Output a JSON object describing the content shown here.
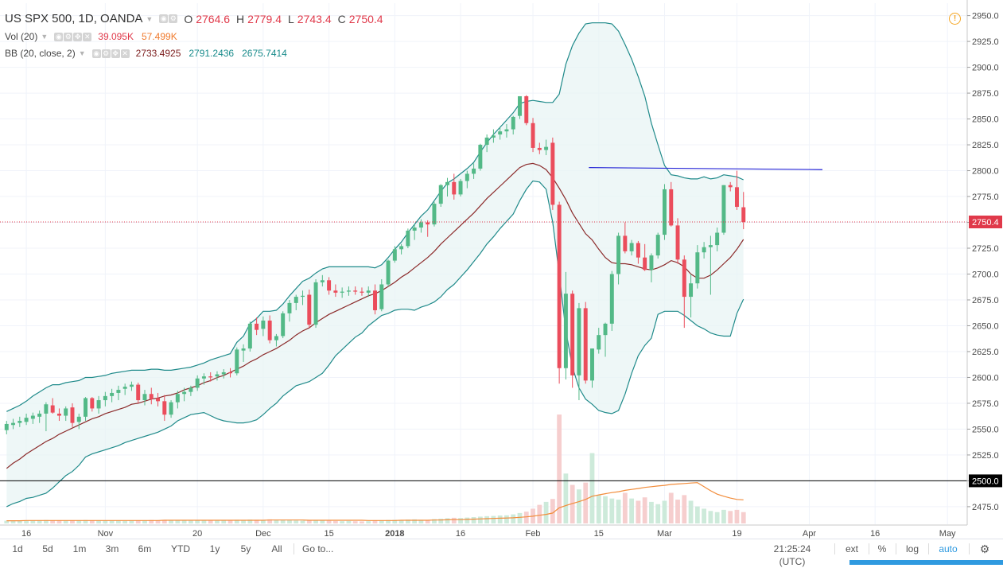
{
  "legend": {
    "symbol": "US SPX 500, 1D, OANDA",
    "o_label": "O",
    "o_value": "2764.6",
    "h_label": "H",
    "h_value": "2779.4",
    "l_label": "L",
    "l_value": "2743.4",
    "c_label": "C",
    "c_value": "2750.4",
    "vol_label": "Vol (20)",
    "vol_value1": "39.095K",
    "vol_value2": "57.499K",
    "bb_label": "BB (20, close, 2)",
    "bb_basis": "2733.4925",
    "bb_upper": "2791.2436",
    "bb_lower": "2675.7414"
  },
  "colors": {
    "up": "#53b987",
    "down": "#eb4d5c",
    "bb_upper_lower": "#1f8a8a",
    "bb_basis": "#8b2a2a",
    "bb_fill": "#e8f4f4",
    "vol_ma": "#f28c3a",
    "trendline": "#2424d6",
    "price_line": "#e0394a"
  },
  "chart_data": {
    "type": "candlestick",
    "y_axis": {
      "ticks": [
        "2950.0",
        "2925.0",
        "2900.0",
        "2875.0",
        "2850.0",
        "2825.0",
        "2800.0",
        "2775.0",
        "2750.0",
        "2725.0",
        "2700.0",
        "2675.0",
        "2650.0",
        "2625.0",
        "2600.0",
        "2575.0",
        "2550.0",
        "2525.0",
        "2500.0",
        "2475.0"
      ],
      "ylim": [
        2458,
        2962
      ]
    },
    "x_axis": {
      "ticks": [
        {
          "label": "16",
          "x": 3
        },
        {
          "label": "Nov",
          "x": 15
        },
        {
          "label": "20",
          "x": 29
        },
        {
          "label": "Dec",
          "x": 39
        },
        {
          "label": "15",
          "x": 49
        },
        {
          "label": "2018",
          "x": 59
        },
        {
          "label": "16",
          "x": 69
        },
        {
          "label": "Feb",
          "x": 80
        },
        {
          "label": "15",
          "x": 90
        },
        {
          "label": "Mar",
          "x": 100
        },
        {
          "label": "19",
          "x": 111
        },
        {
          "label": "Apr",
          "x": 122
        },
        {
          "label": "16",
          "x": 132
        },
        {
          "label": "May",
          "x": 143
        }
      ],
      "xlim": [
        -1,
        146
      ]
    },
    "current_price_label": "2750.4",
    "level_label": "2500.0",
    "horizontal_level": 2500,
    "trendline": {
      "x1": 88.5,
      "y1": 2803,
      "x2": 124,
      "y2": 2801
    },
    "volume_scale_max": 57.5,
    "candles": [
      [
        2549,
        2558,
        2545,
        2555
      ],
      [
        2554,
        2560,
        2550,
        2556
      ],
      [
        2556,
        2562,
        2552,
        2558
      ],
      [
        2557,
        2565,
        2554,
        2561
      ],
      [
        2560,
        2566,
        2555,
        2563
      ],
      [
        2562,
        2568,
        2556,
        2565
      ],
      [
        2565,
        2576,
        2548,
        2574
      ],
      [
        2573,
        2580,
        2565,
        2566
      ],
      [
        2565,
        2570,
        2558,
        2563
      ],
      [
        2563,
        2572,
        2558,
        2570
      ],
      [
        2571,
        2575,
        2552,
        2556
      ],
      [
        2557,
        2565,
        2550,
        2562
      ],
      [
        2562,
        2581,
        2558,
        2580
      ],
      [
        2580,
        2581,
        2567,
        2570
      ],
      [
        2570,
        2582,
        2565,
        2578
      ],
      [
        2578,
        2586,
        2572,
        2582
      ],
      [
        2582,
        2589,
        2576,
        2585
      ],
      [
        2585,
        2592,
        2578,
        2588
      ],
      [
        2589,
        2594,
        2583,
        2591
      ],
      [
        2591,
        2596,
        2587,
        2593
      ],
      [
        2593,
        2595,
        2575,
        2578
      ],
      [
        2578,
        2588,
        2573,
        2584
      ],
      [
        2584,
        2590,
        2574,
        2579
      ],
      [
        2580,
        2585,
        2572,
        2577
      ],
      [
        2577,
        2583,
        2558,
        2564
      ],
      [
        2564,
        2578,
        2561,
        2576
      ],
      [
        2576,
        2587,
        2570,
        2584
      ],
      [
        2584,
        2590,
        2577,
        2586
      ],
      [
        2586,
        2592,
        2582,
        2590
      ],
      [
        2590,
        2602,
        2587,
        2599
      ],
      [
        2599,
        2604,
        2593,
        2601
      ],
      [
        2601,
        2605,
        2596,
        2600
      ],
      [
        2601,
        2606,
        2597,
        2603
      ],
      [
        2603,
        2608,
        2599,
        2605
      ],
      [
        2605,
        2609,
        2600,
        2604
      ],
      [
        2604,
        2629,
        2602,
        2627
      ],
      [
        2626,
        2632,
        2615,
        2628
      ],
      [
        2628,
        2654,
        2625,
        2652
      ],
      [
        2652,
        2658,
        2641,
        2646
      ],
      [
        2647,
        2659,
        2640,
        2655
      ],
      [
        2655,
        2660,
        2633,
        2636
      ],
      [
        2636,
        2642,
        2630,
        2640
      ],
      [
        2640,
        2664,
        2638,
        2662
      ],
      [
        2662,
        2675,
        2654,
        2672
      ],
      [
        2672,
        2680,
        2665,
        2678
      ],
      [
        2678,
        2684,
        2670,
        2679
      ],
      [
        2680,
        2685,
        2648,
        2651
      ],
      [
        2651,
        2695,
        2648,
        2692
      ],
      [
        2692,
        2699,
        2688,
        2694
      ],
      [
        2694,
        2697,
        2680,
        2684
      ],
      [
        2684,
        2690,
        2678,
        2682
      ],
      [
        2682,
        2687,
        2677,
        2683
      ],
      [
        2683,
        2688,
        2679,
        2684
      ],
      [
        2684,
        2688,
        2680,
        2683
      ],
      [
        2683,
        2687,
        2679,
        2682
      ],
      [
        2682,
        2688,
        2678,
        2684
      ],
      [
        2684,
        2690,
        2661,
        2665
      ],
      [
        2666,
        2695,
        2664,
        2690
      ],
      [
        2690,
        2714,
        2688,
        2713
      ],
      [
        2713,
        2727,
        2711,
        2724
      ],
      [
        2724,
        2729,
        2719,
        2727
      ],
      [
        2727,
        2744,
        2725,
        2742
      ],
      [
        2742,
        2748,
        2733,
        2745
      ],
      [
        2745,
        2753,
        2740,
        2750
      ],
      [
        2750,
        2752,
        2736,
        2748
      ],
      [
        2748,
        2770,
        2746,
        2768
      ],
      [
        2768,
        2787,
        2765,
        2786
      ],
      [
        2786,
        2793,
        2775,
        2789
      ],
      [
        2789,
        2797,
        2772,
        2777
      ],
      [
        2777,
        2792,
        2775,
        2790
      ],
      [
        2790,
        2800,
        2783,
        2797
      ],
      [
        2797,
        2807,
        2792,
        2802
      ],
      [
        2802,
        2826,
        2800,
        2825
      ],
      [
        2825,
        2835,
        2818,
        2832
      ],
      [
        2832,
        2840,
        2827,
        2834
      ],
      [
        2835,
        2842,
        2830,
        2838
      ],
      [
        2838,
        2845,
        2832,
        2840
      ],
      [
        2840,
        2853,
        2835,
        2852
      ],
      [
        2853,
        2872,
        2850,
        2872
      ],
      [
        2872,
        2873,
        2844,
        2846
      ],
      [
        2846,
        2851,
        2818,
        2822
      ],
      [
        2822,
        2827,
        2816,
        2820
      ],
      [
        2820,
        2830,
        2815,
        2823
      ],
      [
        2827,
        2832,
        2762,
        2767
      ],
      [
        2767,
        2770,
        2594,
        2609
      ],
      [
        2609,
        2702,
        2598,
        2681
      ],
      [
        2681,
        2684,
        2590,
        2602
      ],
      [
        2602,
        2672,
        2578,
        2667
      ],
      [
        2667,
        2673,
        2594,
        2597
      ],
      [
        2597,
        2628,
        2590,
        2628
      ],
      [
        2627,
        2648,
        2623,
        2641
      ],
      [
        2641,
        2653,
        2620,
        2652
      ],
      [
        2652,
        2703,
        2645,
        2700
      ],
      [
        2700,
        2740,
        2690,
        2737
      ],
      [
        2737,
        2750,
        2720,
        2722
      ],
      [
        2722,
        2733,
        2718,
        2730
      ],
      [
        2730,
        2732,
        2710,
        2716
      ],
      [
        2716,
        2729,
        2703,
        2704
      ],
      [
        2704,
        2720,
        2692,
        2718
      ],
      [
        2718,
        2740,
        2715,
        2738
      ],
      [
        2738,
        2787,
        2733,
        2782
      ],
      [
        2782,
        2789,
        2746,
        2747
      ],
      [
        2747,
        2754,
        2710,
        2714
      ],
      [
        2714,
        2718,
        2648,
        2678
      ],
      [
        2678,
        2700,
        2658,
        2691
      ],
      [
        2691,
        2728,
        2686,
        2721
      ],
      [
        2721,
        2731,
        2715,
        2726
      ],
      [
        2726,
        2737,
        2680,
        2728
      ],
      [
        2728,
        2745,
        2722,
        2740
      ],
      [
        2740,
        2786,
        2738,
        2786
      ],
      [
        2786,
        2789,
        2780,
        2784
      ],
      [
        2784,
        2800,
        2762,
        2765
      ],
      [
        2764.6,
        2779.4,
        2743.4,
        2750.4
      ]
    ],
    "volumes": [
      1.2,
      1.3,
      1.4,
      1.2,
      1.3,
      1.2,
      1.5,
      1.4,
      1.3,
      1.2,
      1.4,
      1.3,
      1.5,
      1.4,
      1.3,
      1.2,
      1.3,
      1.2,
      1.1,
      1.2,
      1.4,
      1.3,
      1.5,
      1.4,
      1.6,
      1.5,
      1.4,
      1.3,
      1.2,
      1.5,
      1.4,
      1.3,
      1.2,
      1.3,
      1.4,
      1.6,
      1.5,
      1.7,
      1.6,
      1.5,
      1.8,
      1.6,
      1.5,
      1.4,
      1.3,
      1.2,
      1.4,
      1.5,
      1.3,
      1.2,
      1.1,
      1.0,
      1.1,
      1.0,
      0.9,
      1.0,
      1.3,
      1.4,
      1.5,
      1.6,
      1.5,
      1.7,
      1.8,
      1.6,
      1.5,
      1.9,
      2.1,
      2.3,
      2.5,
      2.4,
      2.6,
      2.8,
      3.0,
      3.2,
      3.3,
      3.5,
      3.6,
      4.0,
      4.6,
      5.2,
      6.5,
      8.2,
      9.5,
      10.8,
      48.0,
      22.0,
      17.0,
      15.0,
      18.0,
      31.0,
      12.5,
      12.0,
      11.0,
      10.5,
      13.5,
      11.0,
      10.0,
      11.5,
      9.5,
      8.5,
      10.0,
      13.5,
      10.5,
      12.5,
      10.0,
      7.5,
      6.5,
      5.5,
      5.0,
      6.0,
      5.5,
      6.0,
      5.0
    ],
    "bb_upper": [
      2567,
      2570,
      2573,
      2577,
      2582,
      2586,
      2590,
      2593,
      2593,
      2595,
      2596,
      2597,
      2600,
      2600,
      2601,
      2602,
      2604,
      2605,
      2606,
      2607,
      2607,
      2607,
      2608,
      2608,
      2607,
      2607,
      2608,
      2609,
      2610,
      2612,
      2614,
      2617,
      2619,
      2621,
      2623,
      2634,
      2640,
      2652,
      2657,
      2664,
      2664,
      2665,
      2671,
      2679,
      2686,
      2693,
      2696,
      2701,
      2705,
      2707,
      2707,
      2707,
      2707,
      2707,
      2707,
      2707,
      2706,
      2709,
      2716,
      2724,
      2731,
      2740,
      2748,
      2756,
      2762,
      2771,
      2780,
      2788,
      2792,
      2797,
      2802,
      2808,
      2818,
      2827,
      2835,
      2842,
      2849,
      2856,
      2865,
      2867,
      2868,
      2867,
      2866,
      2866,
      2874,
      2903,
      2921,
      2933,
      2942,
      2943,
      2943,
      2943,
      2942,
      2935,
      2922,
      2908,
      2891,
      2872,
      2846,
      2825,
      2805,
      2796,
      2795,
      2793,
      2792,
      2792,
      2794,
      2792,
      2793,
      2796,
      2795,
      2794,
      2791.2
    ],
    "bb_basis": [
      2512,
      2517,
      2521,
      2526,
      2530,
      2534,
      2538,
      2541,
      2545,
      2548,
      2551,
      2554,
      2557,
      2560,
      2562,
      2565,
      2567,
      2569,
      2571,
      2574,
      2575,
      2577,
      2579,
      2580,
      2582,
      2583,
      2585,
      2588,
      2590,
      2592,
      2595,
      2597,
      2600,
      2602,
      2605,
      2608,
      2611,
      2615,
      2618,
      2622,
      2625,
      2628,
      2632,
      2636,
      2641,
      2645,
      2648,
      2653,
      2657,
      2661,
      2664,
      2667,
      2670,
      2673,
      2676,
      2679,
      2681,
      2684,
      2688,
      2692,
      2697,
      2701,
      2706,
      2711,
      2716,
      2722,
      2729,
      2735,
      2741,
      2747,
      2753,
      2759,
      2766,
      2773,
      2779,
      2785,
      2791,
      2797,
      2803,
      2806,
      2807,
      2805,
      2801,
      2793,
      2783,
      2772,
      2759,
      2749,
      2739,
      2733,
      2724,
      2716,
      2711,
      2710,
      2710,
      2709,
      2707,
      2705,
      2704,
      2706,
      2709,
      2713,
      2711,
      2707,
      2700,
      2696,
      2696,
      2699,
      2704,
      2710,
      2716,
      2724,
      2733.5
    ],
    "bb_lower": [
      2475,
      2478,
      2480,
      2483,
      2484,
      2486,
      2488,
      2493,
      2499,
      2505,
      2509,
      2515,
      2523,
      2526,
      2528,
      2530,
      2532,
      2534,
      2537,
      2539,
      2541,
      2543,
      2545,
      2547,
      2550,
      2553,
      2558,
      2561,
      2564,
      2565,
      2566,
      2563,
      2560,
      2558,
      2557,
      2556,
      2556,
      2557,
      2559,
      2564,
      2570,
      2575,
      2582,
      2587,
      2592,
      2594,
      2596,
      2600,
      2604,
      2612,
      2621,
      2627,
      2633,
      2639,
      2643,
      2650,
      2655,
      2660,
      2662,
      2665,
      2666,
      2666,
      2665,
      2668,
      2670,
      2673,
      2678,
      2685,
      2690,
      2697,
      2704,
      2712,
      2720,
      2729,
      2736,
      2744,
      2751,
      2758,
      2771,
      2782,
      2790,
      2789,
      2782,
      2750,
      2700,
      2645,
      2610,
      2590,
      2579,
      2574,
      2568,
      2566,
      2565,
      2568,
      2584,
      2604,
      2621,
      2631,
      2638,
      2661,
      2664,
      2664,
      2664,
      2660,
      2655,
      2650,
      2647,
      2643,
      2641,
      2640,
      2640,
      2662,
      2675.7
    ],
    "vol_ma": [
      1.2,
      1.2,
      1.2,
      1.3,
      1.3,
      1.3,
      1.3,
      1.3,
      1.3,
      1.3,
      1.3,
      1.3,
      1.3,
      1.3,
      1.3,
      1.3,
      1.3,
      1.3,
      1.3,
      1.3,
      1.3,
      1.3,
      1.3,
      1.3,
      1.4,
      1.4,
      1.4,
      1.4,
      1.4,
      1.4,
      1.4,
      1.4,
      1.4,
      1.4,
      1.4,
      1.4,
      1.4,
      1.4,
      1.4,
      1.4,
      1.5,
      1.5,
      1.5,
      1.5,
      1.5,
      1.5,
      1.4,
      1.4,
      1.4,
      1.4,
      1.4,
      1.4,
      1.4,
      1.4,
      1.4,
      1.3,
      1.3,
      1.3,
      1.3,
      1.3,
      1.4,
      1.4,
      1.4,
      1.4,
      1.4,
      1.5,
      1.5,
      1.6,
      1.7,
      1.7,
      1.8,
      1.9,
      2.0,
      2.1,
      2.2,
      2.3,
      2.4,
      2.5,
      2.7,
      2.9,
      3.2,
      3.6,
      4.0,
      4.6,
      6.9,
      7.9,
      8.8,
      9.6,
      10.6,
      12.0,
      12.6,
      13.1,
      13.6,
      14.0,
      14.6,
      15.0,
      15.4,
      15.9,
      16.2,
      16.5,
      16.8,
      17.2,
      17.4,
      17.6,
      17.8,
      18.0,
      16.2,
      14.4,
      12.9,
      12.0,
      11.2,
      10.6,
      10.4
    ]
  },
  "toolbar": {
    "ranges": [
      "1d",
      "5d",
      "1m",
      "3m",
      "6m",
      "YTD",
      "1y",
      "5y",
      "All"
    ],
    "goto": "Go to...",
    "time": "21:25:24 (UTC)",
    "ext": "ext",
    "percent": "%",
    "log": "log",
    "auto": "auto",
    "settings_icon": "gear-icon"
  },
  "alert_icon": "!"
}
